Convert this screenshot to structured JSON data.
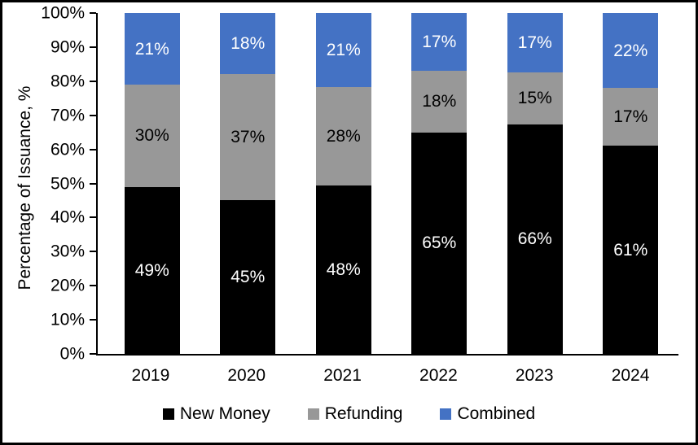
{
  "chart_data": {
    "type": "bar",
    "variant": "stacked-percent",
    "title": "",
    "ylabel": "Percentage of Issuance, %",
    "xlabel": "",
    "categories": [
      "2019",
      "2020",
      "2021",
      "2022",
      "2023",
      "2024"
    ],
    "series": [
      {
        "name": "New Money",
        "color": "#000000",
        "label_color": "#ffffff",
        "values": [
          49,
          45,
          48,
          65,
          66,
          61
        ]
      },
      {
        "name": "Refunding",
        "color": "#989898",
        "label_color": "#000000",
        "values": [
          30,
          37,
          28,
          18,
          15,
          17
        ]
      },
      {
        "name": "Combined",
        "color": "#4472C4",
        "label_color": "#ffffff",
        "values": [
          21,
          18,
          21,
          17,
          17,
          22
        ]
      }
    ],
    "value_suffix": "%",
    "y_axis": {
      "min": 0,
      "max": 100,
      "step": 10,
      "tick_labels": [
        "0%",
        "10%",
        "20%",
        "30%",
        "40%",
        "50%",
        "60%",
        "70%",
        "80%",
        "90%",
        "100%"
      ]
    },
    "legend_position": "bottom",
    "grid": "off"
  },
  "colors": {
    "axis": "#000000",
    "background": "#ffffff",
    "border": "#000000"
  }
}
